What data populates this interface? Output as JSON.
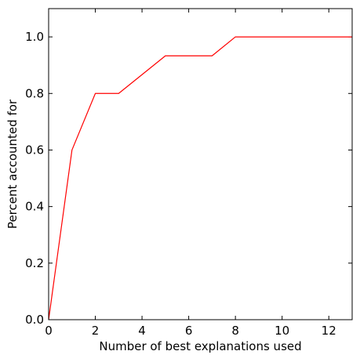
{
  "chart_data": {
    "type": "line",
    "xlabel": "Number of best explanations used",
    "ylabel": "Percent accounted for",
    "xlim": [
      0,
      13
    ],
    "ylim": [
      0,
      1.1
    ],
    "xticks": [
      0,
      2,
      4,
      6,
      8,
      10,
      12
    ],
    "yticks": [
      0.0,
      0.2,
      0.4,
      0.6,
      0.8,
      1.0
    ],
    "xtick_labels": [
      "0",
      "2",
      "4",
      "6",
      "8",
      "10",
      "12"
    ],
    "ytick_labels": [
      "0.0",
      "0.2",
      "0.4",
      "0.6",
      "0.8",
      "1.0"
    ],
    "grid": false,
    "series": [
      {
        "color": "#ff0000",
        "x": [
          0,
          1,
          2,
          3,
          5,
          7,
          8,
          13
        ],
        "y": [
          0.0,
          0.6,
          0.8,
          0.8,
          0.933,
          0.933,
          1.0,
          1.0
        ]
      }
    ]
  }
}
